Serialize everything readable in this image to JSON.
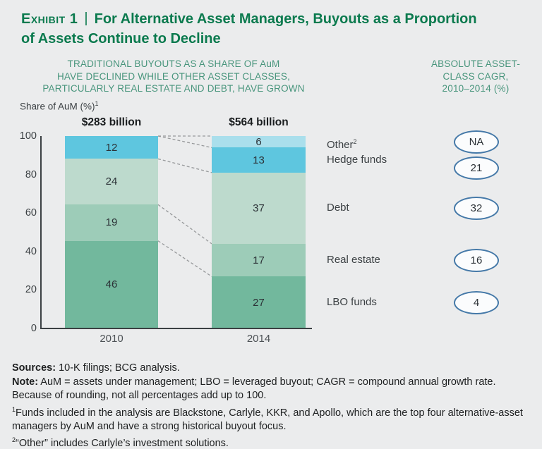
{
  "page_bg": "#ebeced",
  "header": {
    "exhibit_label": "Exhibit 1",
    "separator": "|",
    "title_line1": "For Alternative Asset Managers, Buyouts as a Proportion",
    "title_line2": "of Assets Continue to Decline"
  },
  "left_header": {
    "lines": [
      "TRADITIONAL BUYOUTS AS A SHARE OF AuM",
      "HAVE DECLINED WHILE OTHER ASSET CLASSES,",
      "PARTICULARLY REAL ESTATE AND DEBT, HAVE GROWN"
    ]
  },
  "right_header": {
    "lines": [
      "ABSOLUTE ASSET-",
      "CLASS CAGR,",
      "2010–2014 (%)"
    ]
  },
  "ylabel": {
    "text": "Share of AuM (%)",
    "sup": "1"
  },
  "chart_data": {
    "type": "bar",
    "stacked": true,
    "grid": false,
    "legend_position": "right",
    "categories": [
      "2010",
      "2014"
    ],
    "bar_totals": [
      "$283 billion",
      "$564 billion"
    ],
    "yticks": [
      0,
      20,
      40,
      60,
      80,
      100
    ],
    "ylim": [
      0,
      100
    ],
    "series_top_to_bottom": [
      {
        "name": "Other",
        "name_sup": "2",
        "values": [
          0,
          6
        ],
        "color": "#aadfec",
        "cagr": "NA"
      },
      {
        "name": "Hedge funds",
        "name_sup": "",
        "values": [
          12,
          13
        ],
        "color": "#5ec6df",
        "cagr": "21"
      },
      {
        "name": "Debt",
        "name_sup": "",
        "values": [
          24,
          37
        ],
        "color": "#bddacd",
        "cagr": "32"
      },
      {
        "name": "Real estate",
        "name_sup": "",
        "values": [
          19,
          17
        ],
        "color": "#9dccb8",
        "cagr": "16"
      },
      {
        "name": "LBO funds",
        "name_sup": "",
        "values": [
          46,
          27
        ],
        "color": "#72b89d",
        "cagr": "4"
      }
    ],
    "colors": {
      "title_green": "#0b7a4e",
      "subtitle_green": "#48957c",
      "axis": "#3b4043",
      "dashed_connector": "#97999b",
      "oval_border": "#4579a8",
      "oval_fill": "#fbfcfd",
      "value_text": "#2c3237"
    }
  },
  "footnotes": {
    "sources_label": "Sources:",
    "sources_text": " 10-K filings; BCG analysis.",
    "note_label": "Note:",
    "note_text": " AuM = assets under management; LBO = leveraged buyout; CAGR = compound annual growth rate.",
    "note_continued": "Because of rounding, not all percentages add up to 100.",
    "fn1_sup": "1",
    "fn1_text": "Funds included in the analysis are Blackstone, Carlyle, KKR, and Apollo, which are the top four alternative-asset managers by AuM and have a strong historical buyout focus.",
    "fn2_sup": "2",
    "fn2_text": "“Other” includes Carlyle’s investment solutions."
  }
}
